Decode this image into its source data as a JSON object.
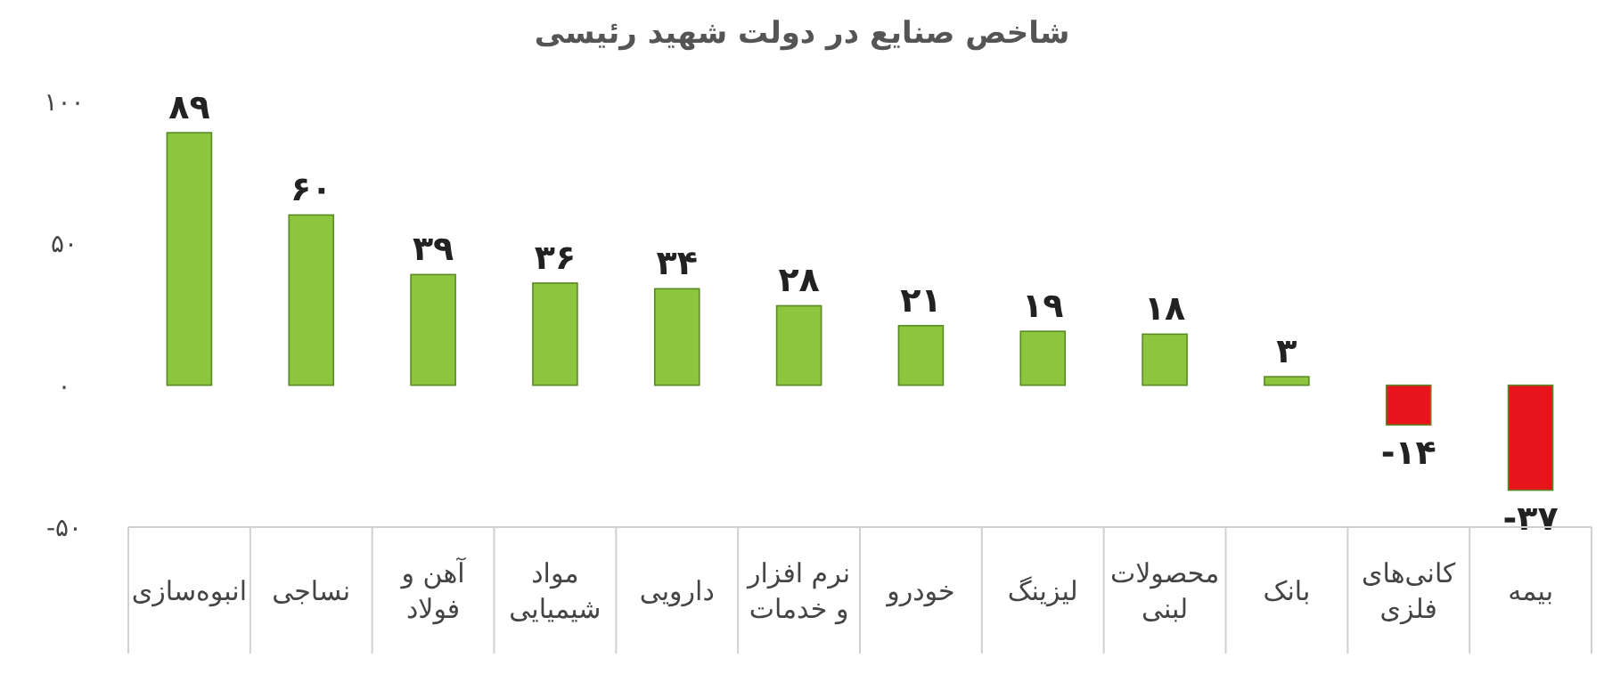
{
  "chart_data": {
    "type": "bar",
    "title": "شاخص صنایع در دولت شهید رئیسی",
    "categories": [
      "انبوه‌سازی",
      "نساجی",
      "آهن و فولاد",
      "مواد شیمیایی",
      "دارویی",
      "نرم افزار و خدمات",
      "خودرو",
      "لیزینگ",
      "محصولات لبنی",
      "بانک",
      "کانی‌های فلزی",
      "بیمه"
    ],
    "values": [
      89,
      60,
      39,
      36,
      34,
      28,
      21,
      19,
      18,
      3,
      -14,
      -37
    ],
    "colors": [
      "#8cc63e",
      "#8cc63e",
      "#8cc63e",
      "#8cc63e",
      "#8cc63e",
      "#8cc63e",
      "#8cc63e",
      "#8cc63e",
      "#8cc63e",
      "#8cc63e",
      "#e8141b",
      "#e8141b"
    ],
    "value_labels": [
      "۸۹",
      "۶۰",
      "۳۹",
      "۳۶",
      "۳۴",
      "۲۸",
      "۲۱",
      "۱۹",
      "۱۸",
      "۳",
      "-۱۴",
      "-۳۷"
    ],
    "ylim": [
      -50,
      100
    ],
    "yticks": [
      {
        "value": -50,
        "label": "-۵۰"
      },
      {
        "value": 0,
        "label": "۰"
      },
      {
        "value": 50,
        "label": "۵۰"
      },
      {
        "value": 100,
        "label": "۱۰۰"
      }
    ],
    "grid": false
  }
}
